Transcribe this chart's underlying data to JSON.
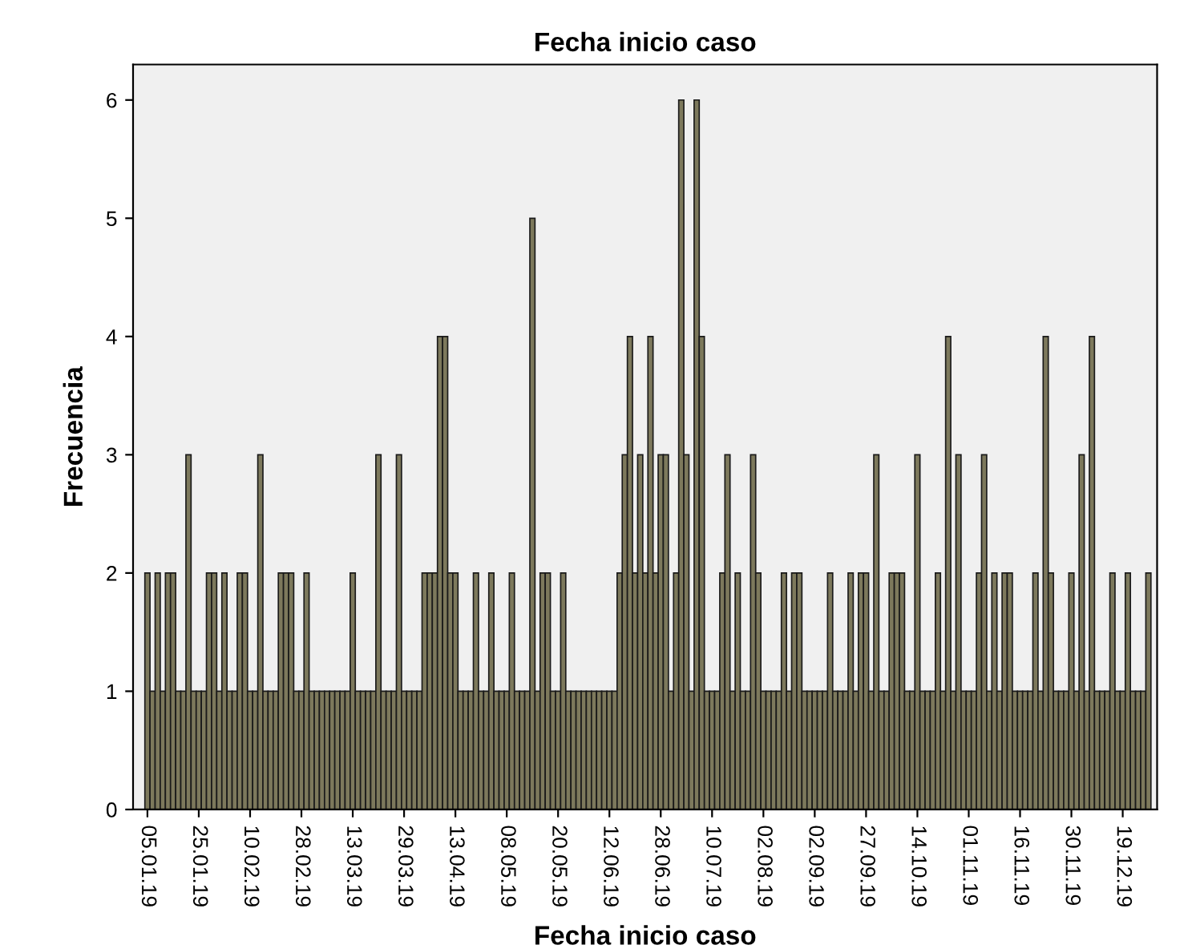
{
  "chart_data": {
    "type": "bar",
    "title": "Fecha inicio caso",
    "xlabel": "Fecha inicio caso",
    "ylabel": "Frecuencia",
    "categories": [
      "05.01.19",
      null,
      null,
      null,
      null,
      null,
      null,
      null,
      null,
      null,
      "25.01.19",
      null,
      null,
      null,
      null,
      null,
      null,
      null,
      null,
      null,
      "10.02.19",
      null,
      null,
      null,
      null,
      null,
      null,
      null,
      null,
      null,
      "28.02.19",
      null,
      null,
      null,
      null,
      null,
      null,
      null,
      null,
      null,
      "13.03.19",
      null,
      null,
      null,
      null,
      null,
      null,
      null,
      null,
      null,
      "29.03.19",
      null,
      null,
      null,
      null,
      null,
      null,
      null,
      null,
      null,
      "13.04.19",
      null,
      null,
      null,
      null,
      null,
      null,
      null,
      null,
      null,
      "08.05.19",
      null,
      null,
      null,
      null,
      null,
      null,
      null,
      null,
      null,
      "20.05.19",
      null,
      null,
      null,
      null,
      null,
      null,
      null,
      null,
      null,
      "12.06.19",
      null,
      null,
      null,
      null,
      null,
      null,
      null,
      null,
      null,
      "28.06.19",
      null,
      null,
      null,
      null,
      null,
      null,
      null,
      null,
      null,
      "10.07.19",
      null,
      null,
      null,
      null,
      null,
      null,
      null,
      null,
      null,
      "02.08.19",
      null,
      null,
      null,
      null,
      null,
      null,
      null,
      null,
      null,
      "02.09.19",
      null,
      null,
      null,
      null,
      null,
      null,
      null,
      null,
      null,
      "27.09.19",
      null,
      null,
      null,
      null,
      null,
      null,
      null,
      null,
      null,
      "14.10.19",
      null,
      null,
      null,
      null,
      null,
      null,
      null,
      null,
      null,
      "01.11.19",
      null,
      null,
      null,
      null,
      null,
      null,
      null,
      null,
      null,
      "16.11.19",
      null,
      null,
      null,
      null,
      null,
      null,
      null,
      null,
      null,
      "30.11.19",
      null,
      null,
      null,
      null,
      null,
      null,
      null,
      null,
      null,
      "19.12.19",
      null,
      null,
      null,
      null,
      null
    ],
    "values": [
      2,
      1,
      2,
      1,
      2,
      2,
      1,
      1,
      3,
      1,
      1,
      1,
      2,
      2,
      1,
      2,
      1,
      1,
      2,
      2,
      1,
      1,
      3,
      1,
      1,
      1,
      2,
      2,
      2,
      1,
      1,
      2,
      1,
      1,
      1,
      1,
      1,
      1,
      1,
      1,
      2,
      1,
      1,
      1,
      1,
      3,
      1,
      1,
      1,
      3,
      1,
      1,
      1,
      1,
      2,
      2,
      2,
      4,
      4,
      2,
      2,
      1,
      1,
      1,
      2,
      1,
      1,
      2,
      1,
      1,
      1,
      2,
      1,
      1,
      1,
      5,
      1,
      2,
      2,
      1,
      1,
      2,
      1,
      1,
      1,
      1,
      1,
      1,
      1,
      1,
      1,
      1,
      2,
      3,
      4,
      2,
      3,
      2,
      4,
      2,
      3,
      3,
      1,
      2,
      6,
      3,
      1,
      6,
      4,
      1,
      1,
      1,
      2,
      3,
      1,
      2,
      1,
      1,
      3,
      2,
      1,
      1,
      1,
      1,
      2,
      1,
      2,
      2,
      1,
      1,
      1,
      1,
      1,
      2,
      1,
      1,
      1,
      2,
      1,
      2,
      2,
      1,
      3,
      1,
      1,
      2,
      2,
      2,
      1,
      1,
      3,
      1,
      1,
      1,
      2,
      1,
      4,
      1,
      3,
      1,
      1,
      1,
      2,
      3,
      1,
      2,
      1,
      2,
      2,
      1,
      1,
      1,
      1,
      2,
      1,
      4,
      2,
      1,
      1,
      1,
      2,
      1,
      3,
      1,
      4,
      1,
      1,
      1,
      2,
      1,
      1,
      2,
      1,
      1,
      1,
      2
    ],
    "color": "#7d795c",
    "ylim": [
      0,
      6.3
    ],
    "yticks": [
      0,
      1,
      2,
      3,
      4,
      5,
      6
    ],
    "grid": false,
    "legend": false
  }
}
